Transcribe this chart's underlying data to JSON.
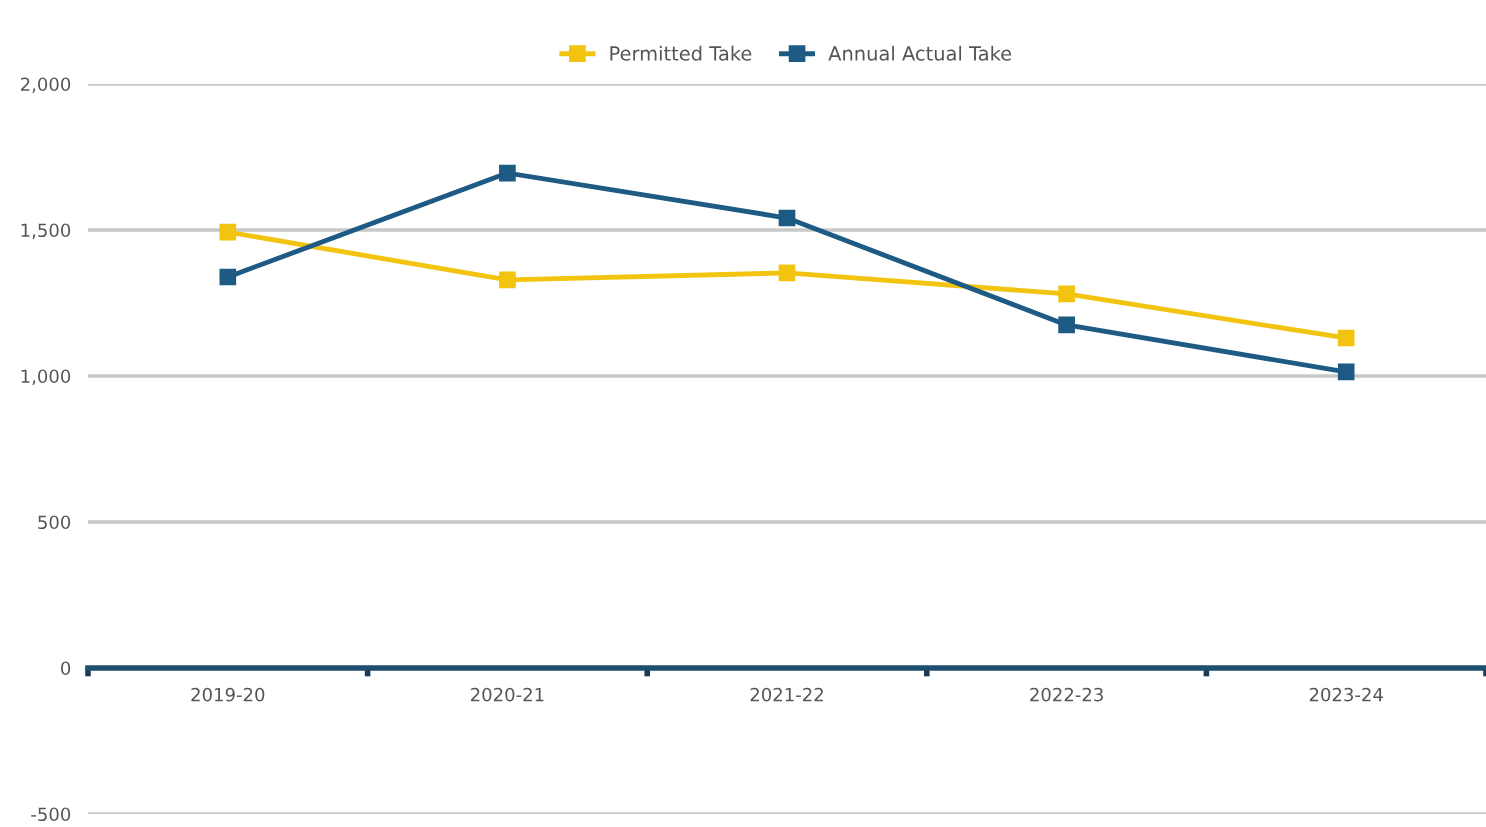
{
  "chart_data": {
    "type": "line",
    "categories": [
      "2019-20",
      "2020-21",
      "2021-22",
      "2022-23",
      "2023-24"
    ],
    "series": [
      {
        "name": "Permitted Take",
        "color": "#f2c40f",
        "values": [
          1493,
          1329,
          1353,
          1281,
          1130
        ]
      },
      {
        "name": "Annual Actual Take",
        "color": "#1d5b85",
        "values": [
          1339,
          1695,
          1541,
          1175,
          1014
        ]
      }
    ],
    "ylim": [
      -500,
      2000
    ],
    "yticks": [
      {
        "value": -500,
        "label": "-500"
      },
      0,
      500,
      {
        "value": 1000,
        "label": "1,000"
      },
      {
        "value": 1500,
        "label": "1,500"
      },
      {
        "value": 2000,
        "label": "2,000"
      }
    ],
    "grid": "y",
    "legend": "top",
    "marker": "square",
    "line_style": "solid"
  }
}
